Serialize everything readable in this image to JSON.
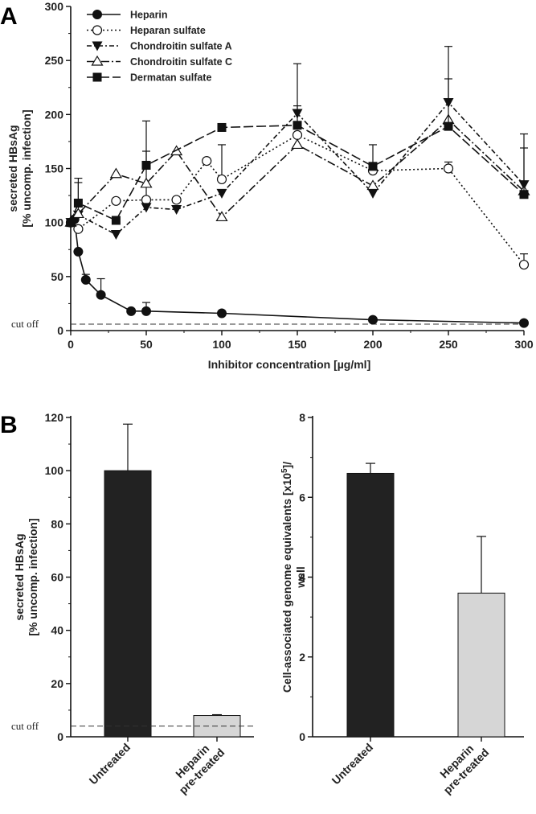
{
  "panel_labels": {
    "a": "A",
    "b": "B"
  },
  "chart_data": [
    {
      "type": "line",
      "panel": "A",
      "xlabel": "Inhibitor concentration [µg/ml]",
      "ylabel_line1": "secreted HBsAg",
      "ylabel_line2": "[% uncomp. infection]",
      "xlim": [
        0,
        300
      ],
      "ylim": [
        0,
        300
      ],
      "xticks": [
        0,
        50,
        100,
        150,
        200,
        250,
        300
      ],
      "yticks": [
        0,
        50,
        100,
        150,
        200,
        250,
        300
      ],
      "cutoff_label": "cut off",
      "cutoff_value": 6,
      "grid": false,
      "legend_position": "top-left",
      "series": [
        {
          "name": "Heparin",
          "marker": "circle-filled",
          "dash": "",
          "x": [
            0,
            2.5,
            5,
            10,
            20,
            40,
            50,
            100,
            200,
            300
          ],
          "y": [
            100,
            103,
            73,
            47,
            33,
            18,
            18,
            16,
            10,
            7
          ],
          "err": [
            0,
            0,
            0,
            5,
            15,
            0,
            8,
            0,
            0,
            0
          ]
        },
        {
          "name": "Heparan sulfate",
          "marker": "circle-open",
          "dash": "2,3",
          "x": [
            0,
            5,
            30,
            50,
            70,
            90,
            100,
            150,
            200,
            250,
            300
          ],
          "y": [
            100,
            94,
            120,
            121,
            121,
            157,
            140,
            181,
            148,
            150,
            61
          ],
          "err": [
            0,
            0,
            0,
            45,
            0,
            0,
            32,
            0,
            0,
            6,
            10
          ]
        },
        {
          "name": "Chondroitin sulfate A",
          "marker": "triangle-down-filled",
          "dash": "6,3,2,3",
          "x": [
            0,
            5,
            30,
            50,
            70,
            100,
            150,
            200,
            250,
            300
          ],
          "y": [
            100,
            107,
            89,
            114,
            112,
            127,
            201,
            127,
            211,
            135
          ],
          "err": [
            0,
            30,
            0,
            0,
            0,
            0,
            7,
            0,
            22,
            47
          ]
        },
        {
          "name": "Chondroitin sulfate C",
          "marker": "triangle-up-open",
          "dash": "10,3,2,3",
          "x": [
            0,
            5,
            30,
            50,
            70,
            100,
            150,
            200,
            250,
            300
          ],
          "y": [
            100,
            108,
            145,
            136,
            166,
            105,
            172,
            134,
            195,
            129
          ],
          "err": [
            0,
            0,
            0,
            0,
            0,
            0,
            0,
            0,
            0,
            0
          ]
        },
        {
          "name": "Dermatan sulfate",
          "marker": "square-filled",
          "dash": "12,4",
          "x": [
            0,
            5,
            30,
            50,
            100,
            150,
            200,
            250,
            300
          ],
          "y": [
            100,
            118,
            102,
            153,
            188,
            190,
            152,
            189,
            126
          ],
          "err": [
            0,
            23,
            0,
            41,
            0,
            57,
            20,
            74,
            43
          ]
        }
      ]
    },
    {
      "type": "bar",
      "panel": "B-left",
      "ylabel_line1": "secreted HBsAg",
      "ylabel_line2": "[% uncomp. infection]",
      "ylim": [
        0,
        120
      ],
      "yticks": [
        0,
        20,
        40,
        60,
        80,
        100,
        120
      ],
      "categories": [
        "Untreated",
        "Heparin\npre-treated"
      ],
      "category_lines": [
        [
          "Untreated"
        ],
        [
          "Heparin",
          "pre-treated"
        ]
      ],
      "values": [
        100,
        8
      ],
      "errors": [
        17.5,
        0.3
      ],
      "colors": [
        "#222222",
        "#d6d6d6"
      ],
      "cutoff_label": "cut off",
      "cutoff_value": 4
    },
    {
      "type": "bar",
      "panel": "B-right",
      "ylabel_line1": "Cell-associated genome equivalents [x10",
      "ylabel_sup": "5",
      "ylabel_line1_end": "]/",
      "ylabel_line2": "well",
      "ylim": [
        0,
        8
      ],
      "yticks": [
        0,
        2,
        4,
        6,
        8
      ],
      "categories": [
        "Untreated",
        "Heparin\npre-treated"
      ],
      "category_lines": [
        [
          "Untreated"
        ],
        [
          "Heparin",
          "pre-treated"
        ]
      ],
      "values": [
        6.6,
        3.6
      ],
      "errors": [
        0.25,
        1.42
      ],
      "colors": [
        "#222222",
        "#d6d6d6"
      ]
    }
  ]
}
